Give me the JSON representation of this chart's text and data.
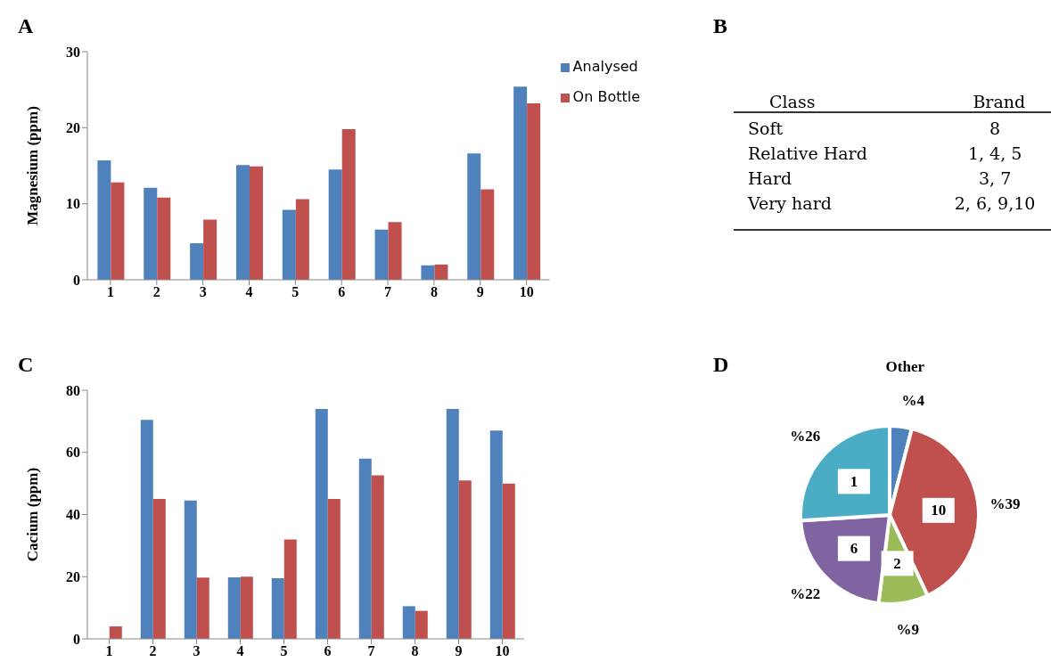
{
  "chart_data": [
    {
      "type": "bar",
      "title": "A",
      "ylabel": "Magnesium (ppm)",
      "categories": [
        "1",
        "2",
        "3",
        "4",
        "5",
        "6",
        "7",
        "8",
        "9",
        "10"
      ],
      "series": [
        {
          "name": "Analysed",
          "color": "#4f81bd",
          "values": [
            15.7,
            12.1,
            4.8,
            15.1,
            9.2,
            14.5,
            6.6,
            1.9,
            16.6,
            25.4
          ]
        },
        {
          "name": "On Bottle",
          "color": "#c0504d",
          "values": [
            12.8,
            10.8,
            7.9,
            14.9,
            10.6,
            19.8,
            7.6,
            2.0,
            11.9,
            23.2
          ]
        }
      ],
      "ylim": [
        0,
        30
      ],
      "yticks": [
        0,
        10,
        20,
        30
      ],
      "legend": "top right"
    },
    {
      "type": "other",
      "title": "B",
      "annotations": [
        "Class",
        "Brand",
        "Soft",
        "8",
        "Relative Hard",
        "1, 4, 5",
        "Hard",
        "3, 7",
        "Very hard",
        "2, 6, 9,10"
      ]
    },
    {
      "type": "bar",
      "title": "C",
      "ylabel": "Cacium (ppm)",
      "categories": [
        "1",
        "2",
        "3",
        "4",
        "5",
        "6",
        "7",
        "8",
        "9",
        "10"
      ],
      "series": [
        {
          "color": "#4f81bd",
          "values": [
            0,
            70.5,
            44.5,
            19.8,
            19.5,
            74,
            58,
            10.5,
            74,
            67
          ]
        },
        {
          "color": "#c0504d",
          "values": [
            4,
            45,
            19.7,
            20,
            32,
            45,
            52.6,
            9,
            51,
            50
          ]
        }
      ],
      "ylim": [
        0,
        80
      ],
      "yticks": [
        0,
        20,
        40,
        60,
        80
      ]
    },
    {
      "type": "pie",
      "title": "D",
      "categories": [
        "Other",
        "10",
        "2",
        "6",
        "1"
      ],
      "values": [
        4,
        39,
        9,
        22,
        26
      ],
      "colors": [
        "#4f81bd",
        "#c0504d",
        "#9bbb59",
        "#8064a2",
        "#4bacc6"
      ],
      "value_labels": [
        "%4",
        "%39",
        "%9",
        "%22",
        "%26"
      ]
    }
  ]
}
